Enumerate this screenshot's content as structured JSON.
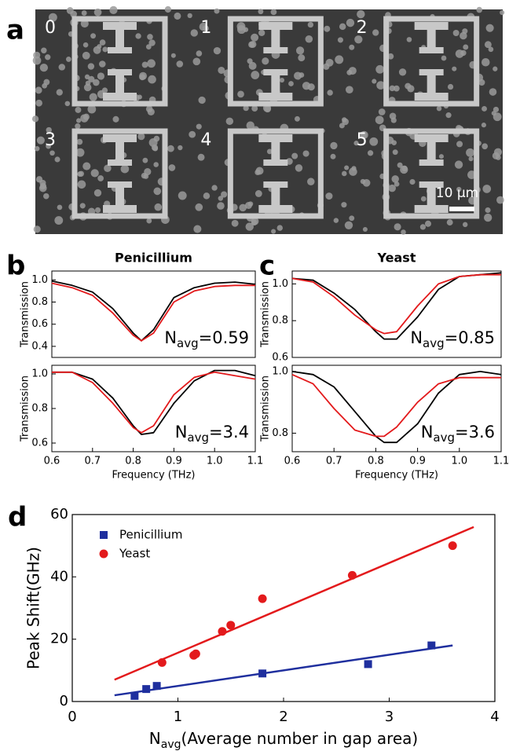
{
  "panel_labels": [
    "a",
    "b",
    "c",
    "d"
  ],
  "sem_image": {
    "tile_labels": [
      "0",
      "1",
      "2",
      "3",
      "4",
      "5"
    ],
    "scale_bar": "10 µm"
  },
  "chart_data": [
    {
      "type": "line",
      "title": "Penicillium",
      "ylabel": "Transmission",
      "x": [
        0.6,
        0.65,
        0.7,
        0.75,
        0.8,
        0.82,
        0.85,
        0.9,
        0.95,
        1.0,
        1.05,
        1.1
      ],
      "series": [
        {
          "color": "#000000",
          "values": [
            0.99,
            0.95,
            0.89,
            0.74,
            0.52,
            0.45,
            0.55,
            0.84,
            0.93,
            0.97,
            0.98,
            0.96
          ]
        },
        {
          "color": "#e31a1c",
          "values": [
            0.97,
            0.93,
            0.86,
            0.7,
            0.5,
            0.45,
            0.52,
            0.8,
            0.9,
            0.94,
            0.95,
            0.95
          ]
        }
      ],
      "xlim": [
        0.6,
        1.1
      ],
      "ylim": [
        0.3,
        1.08
      ],
      "yticks": [
        0.4,
        0.6,
        0.8,
        {
          "value": 1,
          "label": "1.0"
        }
      ],
      "annotation": [
        "N",
        "avg",
        "=0.59"
      ]
    },
    {
      "type": "line",
      "ylabel": "Transmission",
      "xlabel": "Frequency (THz)",
      "x": [
        0.6,
        0.65,
        0.7,
        0.75,
        0.8,
        0.82,
        0.85,
        0.9,
        0.95,
        1.0,
        1.05,
        1.1
      ],
      "series": [
        {
          "color": "#000000",
          "values": [
            1.01,
            1.01,
            0.97,
            0.86,
            0.7,
            0.65,
            0.66,
            0.83,
            0.96,
            1.02,
            1.02,
            0.99
          ]
        },
        {
          "color": "#e31a1c",
          "values": [
            1.01,
            1.01,
            0.95,
            0.83,
            0.69,
            0.66,
            0.7,
            0.88,
            0.98,
            1.01,
            0.99,
            0.97
          ]
        }
      ],
      "xlim": [
        0.6,
        1.1
      ],
      "ylim": [
        0.55,
        1.05
      ],
      "xticks": [
        0.6,
        0.7,
        0.8,
        0.9,
        {
          "value": 1,
          "label": "1.0"
        },
        1.1
      ],
      "yticks": [
        0.6,
        0.8,
        {
          "value": 1,
          "label": "1.0"
        }
      ],
      "annotation": [
        "N",
        "avg",
        "=3.4"
      ]
    },
    {
      "type": "line",
      "title": "Yeast",
      "ylabel": "Transmission",
      "x": [
        0.6,
        0.65,
        0.7,
        0.75,
        0.8,
        0.82,
        0.85,
        0.9,
        0.95,
        1.0,
        1.05,
        1.1
      ],
      "series": [
        {
          "color": "#000000",
          "values": [
            1.03,
            1.02,
            0.95,
            0.86,
            0.74,
            0.7,
            0.7,
            0.82,
            0.97,
            1.04,
            1.05,
            1.06
          ]
        },
        {
          "color": "#e31a1c",
          "values": [
            1.03,
            1.01,
            0.93,
            0.83,
            0.75,
            0.73,
            0.74,
            0.88,
            1.0,
            1.04,
            1.05,
            1.05
          ]
        }
      ],
      "xlim": [
        0.6,
        1.1
      ],
      "ylim": [
        0.6,
        1.07
      ],
      "yticks": [
        0.6,
        0.8,
        {
          "value": 1,
          "label": "1.0"
        }
      ],
      "annotation": [
        "N",
        "avg",
        "=0.85"
      ]
    },
    {
      "type": "line",
      "ylabel": "Transmission",
      "xlabel": "Frequency (THz)",
      "x": [
        0.6,
        0.65,
        0.7,
        0.75,
        0.8,
        0.82,
        0.85,
        0.9,
        0.95,
        1.0,
        1.05,
        1.1
      ],
      "series": [
        {
          "color": "#000000",
          "values": [
            1.0,
            0.99,
            0.95,
            0.87,
            0.79,
            0.77,
            0.77,
            0.83,
            0.93,
            0.99,
            1.0,
            0.99
          ]
        },
        {
          "color": "#e31a1c",
          "values": [
            0.99,
            0.96,
            0.88,
            0.81,
            0.79,
            0.79,
            0.82,
            0.9,
            0.96,
            0.98,
            0.98,
            0.98
          ]
        }
      ],
      "xlim": [
        0.6,
        1.1
      ],
      "ylim": [
        0.74,
        1.02
      ],
      "xticks": [
        0.6,
        0.7,
        0.8,
        0.9,
        {
          "value": 1,
          "label": "1.0"
        },
        1.1
      ],
      "yticks": [
        0.8,
        {
          "value": 1,
          "label": "1.0"
        }
      ],
      "annotation": [
        "N",
        "avg",
        "=3.6"
      ]
    },
    {
      "type": "scatter",
      "ylabel": "Peak Shift(GHz)",
      "xlabel": [
        "N",
        "avg",
        "(Average number in gap area)"
      ],
      "series": [
        {
          "name": "Penicillium",
          "color": "#1f2f9e",
          "marker": "square",
          "x": [
            0.59,
            0.7,
            0.8,
            1.8,
            2.8,
            3.4
          ],
          "values": [
            1.8,
            4,
            5,
            9,
            12,
            18
          ],
          "fit": {
            "x": [
              0.4,
              3.6
            ],
            "values": [
              2,
              18
            ]
          }
        },
        {
          "name": "Yeast",
          "color": "#e31a1c",
          "marker": "circle",
          "x": [
            0.85,
            1.15,
            1.17,
            1.42,
            1.5,
            1.8,
            2.65,
            3.6
          ],
          "values": [
            12.5,
            14.8,
            15.3,
            22.5,
            24.5,
            33,
            40.5,
            50
          ],
          "fit": {
            "x": [
              0.4,
              3.8
            ],
            "values": [
              7,
              56
            ]
          }
        }
      ],
      "xlim": [
        0,
        4
      ],
      "ylim": [
        0,
        60
      ],
      "xticks": [
        0,
        1,
        2,
        3,
        4
      ],
      "yticks": [
        0,
        20,
        40,
        60
      ],
      "legend": "upper-left"
    }
  ]
}
